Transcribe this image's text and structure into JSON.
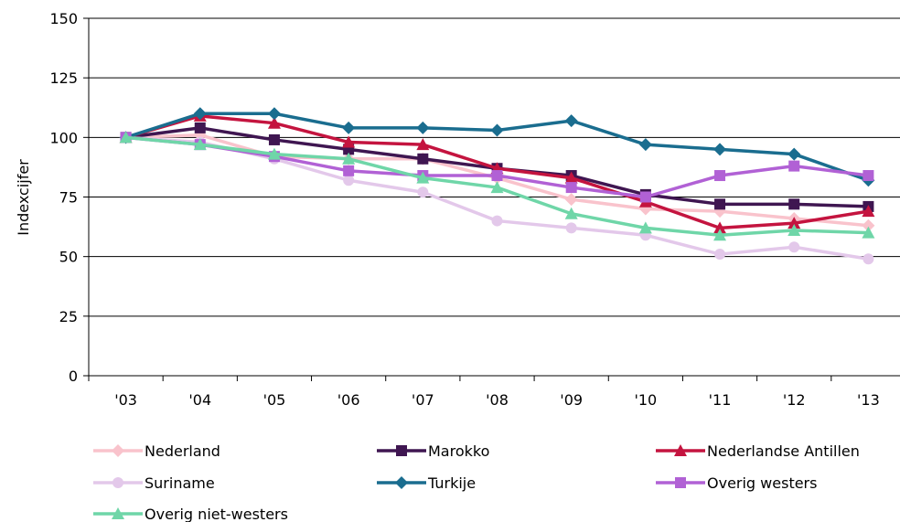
{
  "chart_data": {
    "type": "line",
    "title": "",
    "xlabel": "",
    "ylabel": "Indexcijfer",
    "ylim": [
      0,
      150
    ],
    "yticks": [
      0,
      25,
      50,
      75,
      100,
      125,
      150
    ],
    "grid": "horizontal",
    "legend_position": "bottom",
    "categories": [
      "'03",
      "'04",
      "'05",
      "'06",
      "'07",
      "'08",
      "'09",
      "'10",
      "'11",
      "'12",
      "'13"
    ],
    "series": [
      {
        "name": "Nederland",
        "color": "#f9c3cc",
        "marker": "diamond",
        "values": [
          100,
          101,
          92,
          91,
          91,
          83,
          74,
          70,
          69,
          66,
          63
        ]
      },
      {
        "name": "Marokko",
        "color": "#3f1651",
        "marker": "square",
        "values": [
          100,
          104,
          99,
          95,
          91,
          87,
          84,
          76,
          72,
          72,
          71
        ]
      },
      {
        "name": "Nederlandse Antillen",
        "color": "#c4143f",
        "marker": "triangle",
        "values": [
          100,
          109,
          106,
          98,
          97,
          87,
          83,
          73,
          62,
          64,
          69
        ]
      },
      {
        "name": "Suriname",
        "color": "#e3c8ea",
        "marker": "circle",
        "values": [
          100,
          98,
          91,
          82,
          77,
          65,
          62,
          59,
          51,
          54,
          49
        ]
      },
      {
        "name": "Turkije",
        "color": "#1a6d8f",
        "marker": "diamond",
        "values": [
          100,
          110,
          110,
          104,
          104,
          103,
          107,
          97,
          95,
          93,
          82
        ]
      },
      {
        "name": "Overig westers",
        "color": "#b161d5",
        "marker": "square",
        "values": [
          100,
          97,
          92,
          86,
          84,
          84,
          79,
          75,
          84,
          88,
          84
        ]
      },
      {
        "name": "Overig niet-westers",
        "color": "#6fd6a8",
        "marker": "triangle",
        "values": [
          100,
          97,
          93,
          91,
          83,
          79,
          68,
          62,
          59,
          61,
          60
        ]
      }
    ]
  }
}
